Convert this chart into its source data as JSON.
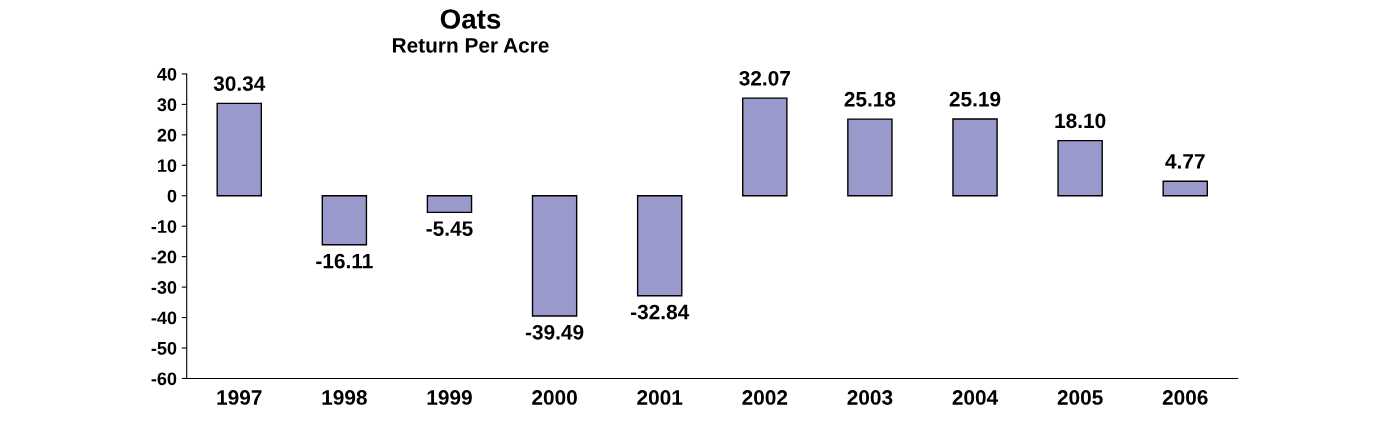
{
  "chart_data": {
    "type": "bar",
    "title": "Oats",
    "subtitle": "Return Per Acre",
    "categories": [
      "1997",
      "1998",
      "1999",
      "2000",
      "2001",
      "2002",
      "2003",
      "2004",
      "2005",
      "2006"
    ],
    "values": [
      30.34,
      -16.11,
      -5.45,
      -39.49,
      -32.84,
      32.07,
      25.18,
      25.19,
      18.1,
      4.77
    ],
    "value_labels": [
      "30.34",
      "-16.11",
      "-5.45",
      "-39.49",
      "-32.84",
      "32.07",
      "25.18",
      "25.19",
      "18.10",
      "4.77"
    ],
    "color": "#9999cc",
    "ylim": [
      -60,
      40
    ],
    "yticks": [
      -60,
      -50,
      -40,
      -30,
      -20,
      -10,
      0,
      10,
      20,
      30,
      40
    ],
    "grid": false
  }
}
